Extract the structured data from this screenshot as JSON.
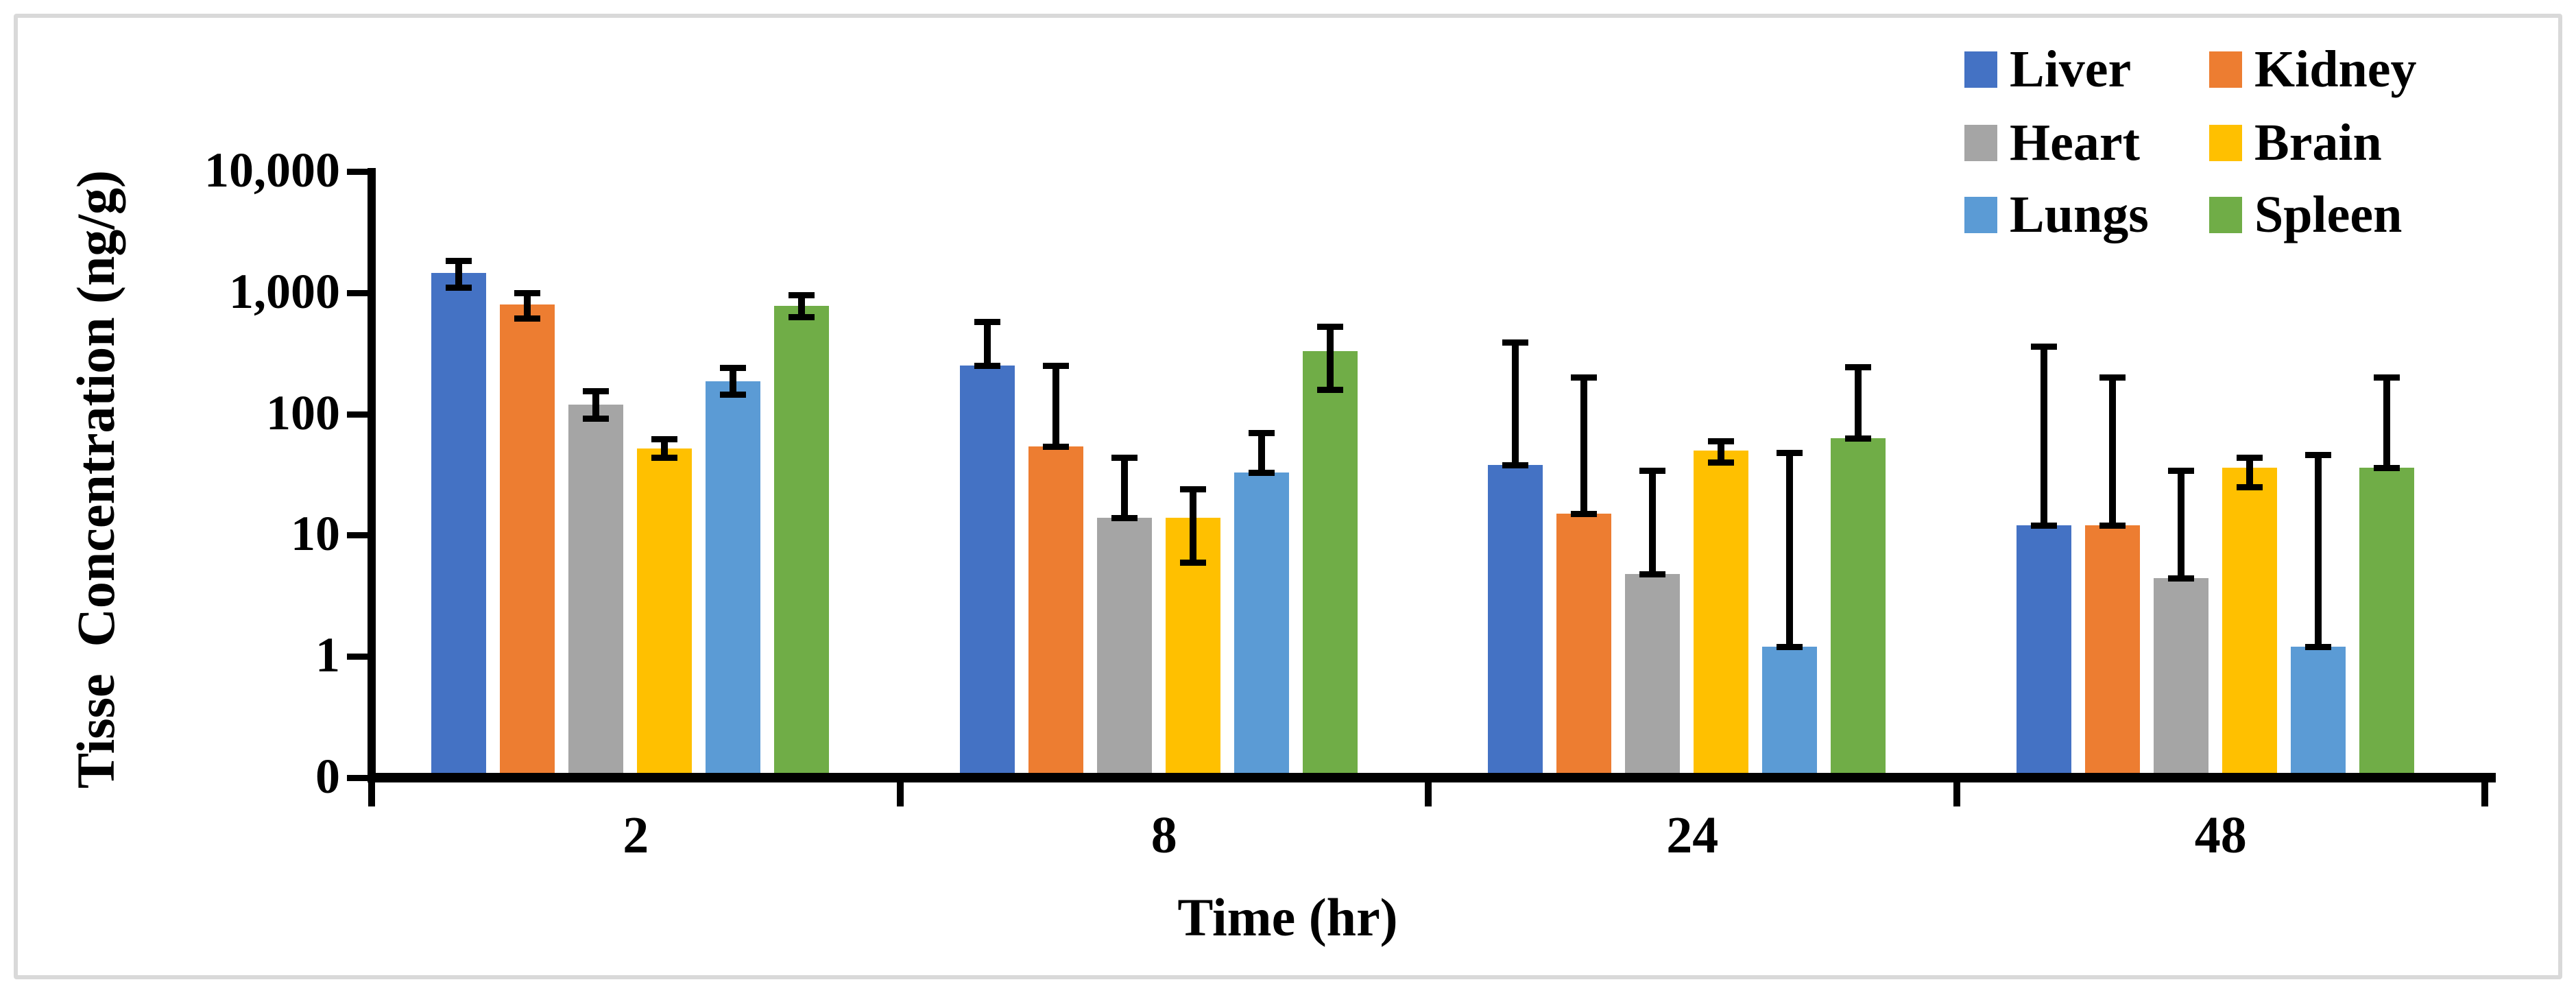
{
  "figure": {
    "background": "#FFFFFF",
    "border_color": "#D9D9D9"
  },
  "y_axis": {
    "title": "Tisse  Concentration (ng/g)",
    "tick_labels": [
      "0",
      "1",
      "10",
      "100",
      "1,000",
      "10,000"
    ]
  },
  "x_axis": {
    "title": "Time (hr)",
    "categories": [
      "2",
      "8",
      "24",
      "48"
    ]
  },
  "legend": {
    "position": "top-right",
    "items": [
      {
        "label": "Liver",
        "color": "#4472C4"
      },
      {
        "label": "Kidney",
        "color": "#ED7D31"
      },
      {
        "label": "Heart",
        "color": "#A5A5A5"
      },
      {
        "label": "Brain",
        "color": "#FFC000"
      },
      {
        "label": "Lungs",
        "color": "#5B9BD5"
      },
      {
        "label": "Spleen",
        "color": "#70AD47"
      }
    ]
  },
  "chart_data": {
    "type": "bar",
    "y_scale": "log",
    "grid": false,
    "error_bars": true,
    "legend_position": "top-right",
    "xlabel": "Time (hr)",
    "ylabel": "Tisse  Concentration (ng/g)",
    "categories": [
      "2",
      "8",
      "24",
      "48"
    ],
    "y_ticks": [
      "0",
      "1",
      "10",
      "100",
      "1,000",
      "10,000"
    ],
    "ylim": [
      0.1,
      10000
    ],
    "series": [
      {
        "name": "Liver",
        "color": "#4472C4",
        "values": [
          1450,
          250,
          38,
          12
        ],
        "err_low": [
          1100,
          250,
          38,
          12
        ],
        "err_high": [
          1850,
          580,
          390,
          360
        ]
      },
      {
        "name": "Kidney",
        "color": "#ED7D31",
        "values": [
          800,
          54,
          15,
          12
        ],
        "err_low": [
          620,
          54,
          15,
          12
        ],
        "err_high": [
          1000,
          250,
          200,
          200
        ]
      },
      {
        "name": "Heart",
        "color": "#A5A5A5",
        "values": [
          120,
          14,
          4.8,
          4.4
        ],
        "err_low": [
          92,
          14,
          4.8,
          4.4
        ],
        "err_high": [
          155,
          44,
          34,
          34
        ]
      },
      {
        "name": "Brain",
        "color": "#FFC000",
        "values": [
          52,
          14,
          50,
          36
        ],
        "err_low": [
          44,
          6,
          40,
          25
        ],
        "err_high": [
          62,
          24,
          60,
          44
        ]
      },
      {
        "name": "Lungs",
        "color": "#5B9BD5",
        "values": [
          185,
          33,
          1.2,
          1.2
        ],
        "err_low": [
          145,
          33,
          1.2,
          1.2
        ],
        "err_high": [
          240,
          70,
          48,
          46
        ]
      },
      {
        "name": "Spleen",
        "color": "#70AD47",
        "values": [
          780,
          330,
          63,
          36
        ],
        "err_low": [
          630,
          160,
          63,
          36
        ],
        "err_high": [
          960,
          530,
          245,
          200
        ]
      }
    ]
  }
}
